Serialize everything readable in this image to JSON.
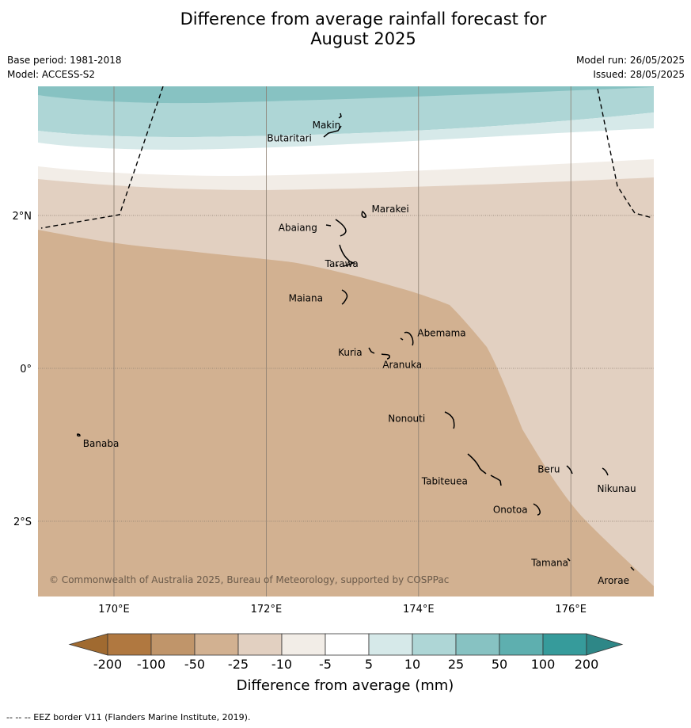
{
  "title": {
    "line1": "Difference from average rainfall forecast for",
    "line2": "August 2025"
  },
  "meta": {
    "base_period": "Base period: 1981-2018",
    "model": "Model: ACCESS-S2",
    "model_run": "Model run: 26/05/2025",
    "issued": "Issued: 28/05/2025"
  },
  "map": {
    "lon_range": [
      169.0,
      177.1
    ],
    "lat_range": [
      -3.0,
      3.4
    ],
    "lon_ticks": [
      {
        "value": 170,
        "label": "170°E"
      },
      {
        "value": 172,
        "label": "172°E"
      },
      {
        "value": 174,
        "label": "174°E"
      },
      {
        "value": 176,
        "label": "176°E"
      }
    ],
    "lat_ticks": [
      {
        "value": 2,
        "label": "2°N"
      },
      {
        "value": 0,
        "label": "0°"
      },
      {
        "value": -2,
        "label": "2°S"
      }
    ],
    "copyright": "© Commonwealth of Australia 2025, Bureau of Meteorology, supported by COSPPac",
    "places": [
      {
        "name": "Makin",
        "lon": 173.0,
        "lat": 3.17
      },
      {
        "name": "Butaritari",
        "lon": 172.8,
        "lat": 3.03
      },
      {
        "name": "Marakei",
        "lon": 173.3,
        "lat": 2.0
      },
      {
        "name": "Abaiang",
        "lon": 172.95,
        "lat": 1.85
      },
      {
        "name": "Tarawa",
        "lon": 173.0,
        "lat": 1.4
      },
      {
        "name": "Maiana",
        "lon": 173.0,
        "lat": 0.93
      },
      {
        "name": "Abemama",
        "lon": 173.85,
        "lat": 0.4
      },
      {
        "name": "Kuria",
        "lon": 173.4,
        "lat": 0.23
      },
      {
        "name": "Aranuka",
        "lon": 173.6,
        "lat": 0.17
      },
      {
        "name": "Nonouti",
        "lon": 174.4,
        "lat": -0.67
      },
      {
        "name": "Banaba",
        "lon": 169.53,
        "lat": -0.87
      },
      {
        "name": "Beru",
        "lon": 175.98,
        "lat": -1.33
      },
      {
        "name": "Nikunau",
        "lon": 176.45,
        "lat": -1.37
      },
      {
        "name": "Tabiteuea",
        "lon": 174.8,
        "lat": -1.35
      },
      {
        "name": "Onotoa",
        "lon": 175.57,
        "lat": -1.8
      },
      {
        "name": "Tamana",
        "lon": 175.98,
        "lat": -2.5
      },
      {
        "name": "Arorae",
        "lon": 176.82,
        "lat": -2.64
      }
    ]
  },
  "colorbar": {
    "labels": [
      "-200",
      "-100",
      "-50",
      "-25",
      "-10",
      "-5",
      "5",
      "10",
      "25",
      "50",
      "100",
      "200"
    ],
    "colors": [
      "#b07840",
      "#c0956a",
      "#d2b191",
      "#e2d0c1",
      "#f2ede7",
      "#ffffff",
      "#d6e9e9",
      "#aed6d6",
      "#87c2c2",
      "#5eafaf",
      "#369b9b"
    ],
    "low_extend_color": "#a06a30",
    "high_extend_color": "#2e8787",
    "title": "Difference from average (mm)"
  },
  "footnote": "--  --  -- EEZ border V11 (Flanders Marine Institute, 2019)."
}
